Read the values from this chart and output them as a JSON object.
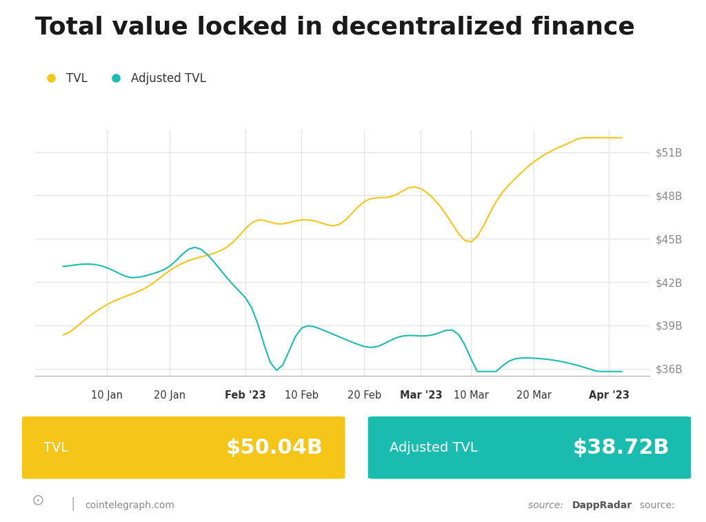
{
  "title": "Total value locked in decentralized finance",
  "title_fontsize": 26,
  "title_fontweight": "bold",
  "tvl_color": "#F5C518",
  "adj_tvl_color": "#1ABCB0",
  "background_color": "#FFFFFF",
  "grid_color": "#E0E0E0",
  "axis_color": "#AAAAAA",
  "ytick_labels": [
    "$36B",
    "$39B",
    "$42B",
    "$45B",
    "$48B",
    "$51B"
  ],
  "ytick_values": [
    36,
    39,
    42,
    45,
    48,
    51
  ],
  "ylim": [
    35.5,
    52.5
  ],
  "tvl_value": "$50.04B",
  "adj_tvl_value": "$38.72B",
  "tvl_box_color": "#F5C518",
  "adj_tvl_box_color": "#1ABCB0",
  "source_text": "source: DappRadar",
  "cointelegraph_text": "cointelegraph.com",
  "legend_tvl": "TVL",
  "legend_adj_tvl": "Adjusted TVL",
  "xtick_labels": [
    "10 Jan",
    "20 Jan",
    "Feb '23",
    "10 Feb",
    "20 Feb",
    "Mar '23",
    "10 Mar",
    "20 Mar",
    "Apr '23"
  ],
  "xtick_bold": [
    false,
    false,
    true,
    false,
    false,
    true,
    false,
    false,
    true
  ]
}
